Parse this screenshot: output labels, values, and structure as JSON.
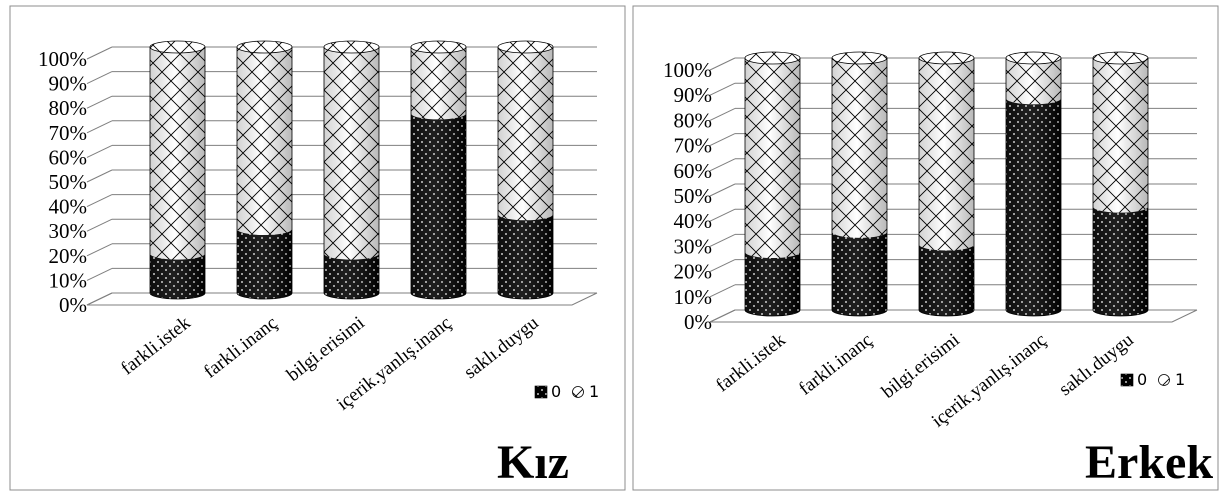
{
  "chart_data": [
    {
      "type": "bar",
      "stacked": true,
      "percent": true,
      "title": "Kız",
      "categories": [
        "farkli.istek",
        "farkli.inanç",
        "bilgi.erisimi",
        "içerik.yanlış.inanç",
        "saklı.duygu"
      ],
      "series": [
        {
          "name": "0",
          "values": [
            16,
            26,
            16,
            73,
            32
          ]
        },
        {
          "name": "1",
          "values": [
            84,
            74,
            84,
            27,
            68
          ]
        }
      ],
      "ylim": [
        0,
        100
      ],
      "yticks": [
        "0%",
        "10%",
        "20%",
        "30%",
        "40%",
        "50%",
        "60%",
        "70%",
        "80%",
        "90%",
        "100%"
      ],
      "grid": true,
      "legend": "right"
    },
    {
      "type": "bar",
      "stacked": true,
      "percent": true,
      "title": "Erkek",
      "categories": [
        "farkli.istek",
        "farkli.inanç",
        "bilgi.erisimi",
        "içerik.yanlış.inanç",
        "saklı.duygu"
      ],
      "series": [
        {
          "name": "0",
          "values": [
            23,
            31,
            26,
            84,
            41
          ]
        },
        {
          "name": "1",
          "values": [
            77,
            69,
            74,
            16,
            59
          ]
        }
      ],
      "ylim": [
        0,
        100
      ],
      "yticks": [
        "0%",
        "10%",
        "20%",
        "30%",
        "40%",
        "50%",
        "60%",
        "70%",
        "80%",
        "90%",
        "100%"
      ],
      "grid": true,
      "legend": "right"
    }
  ]
}
